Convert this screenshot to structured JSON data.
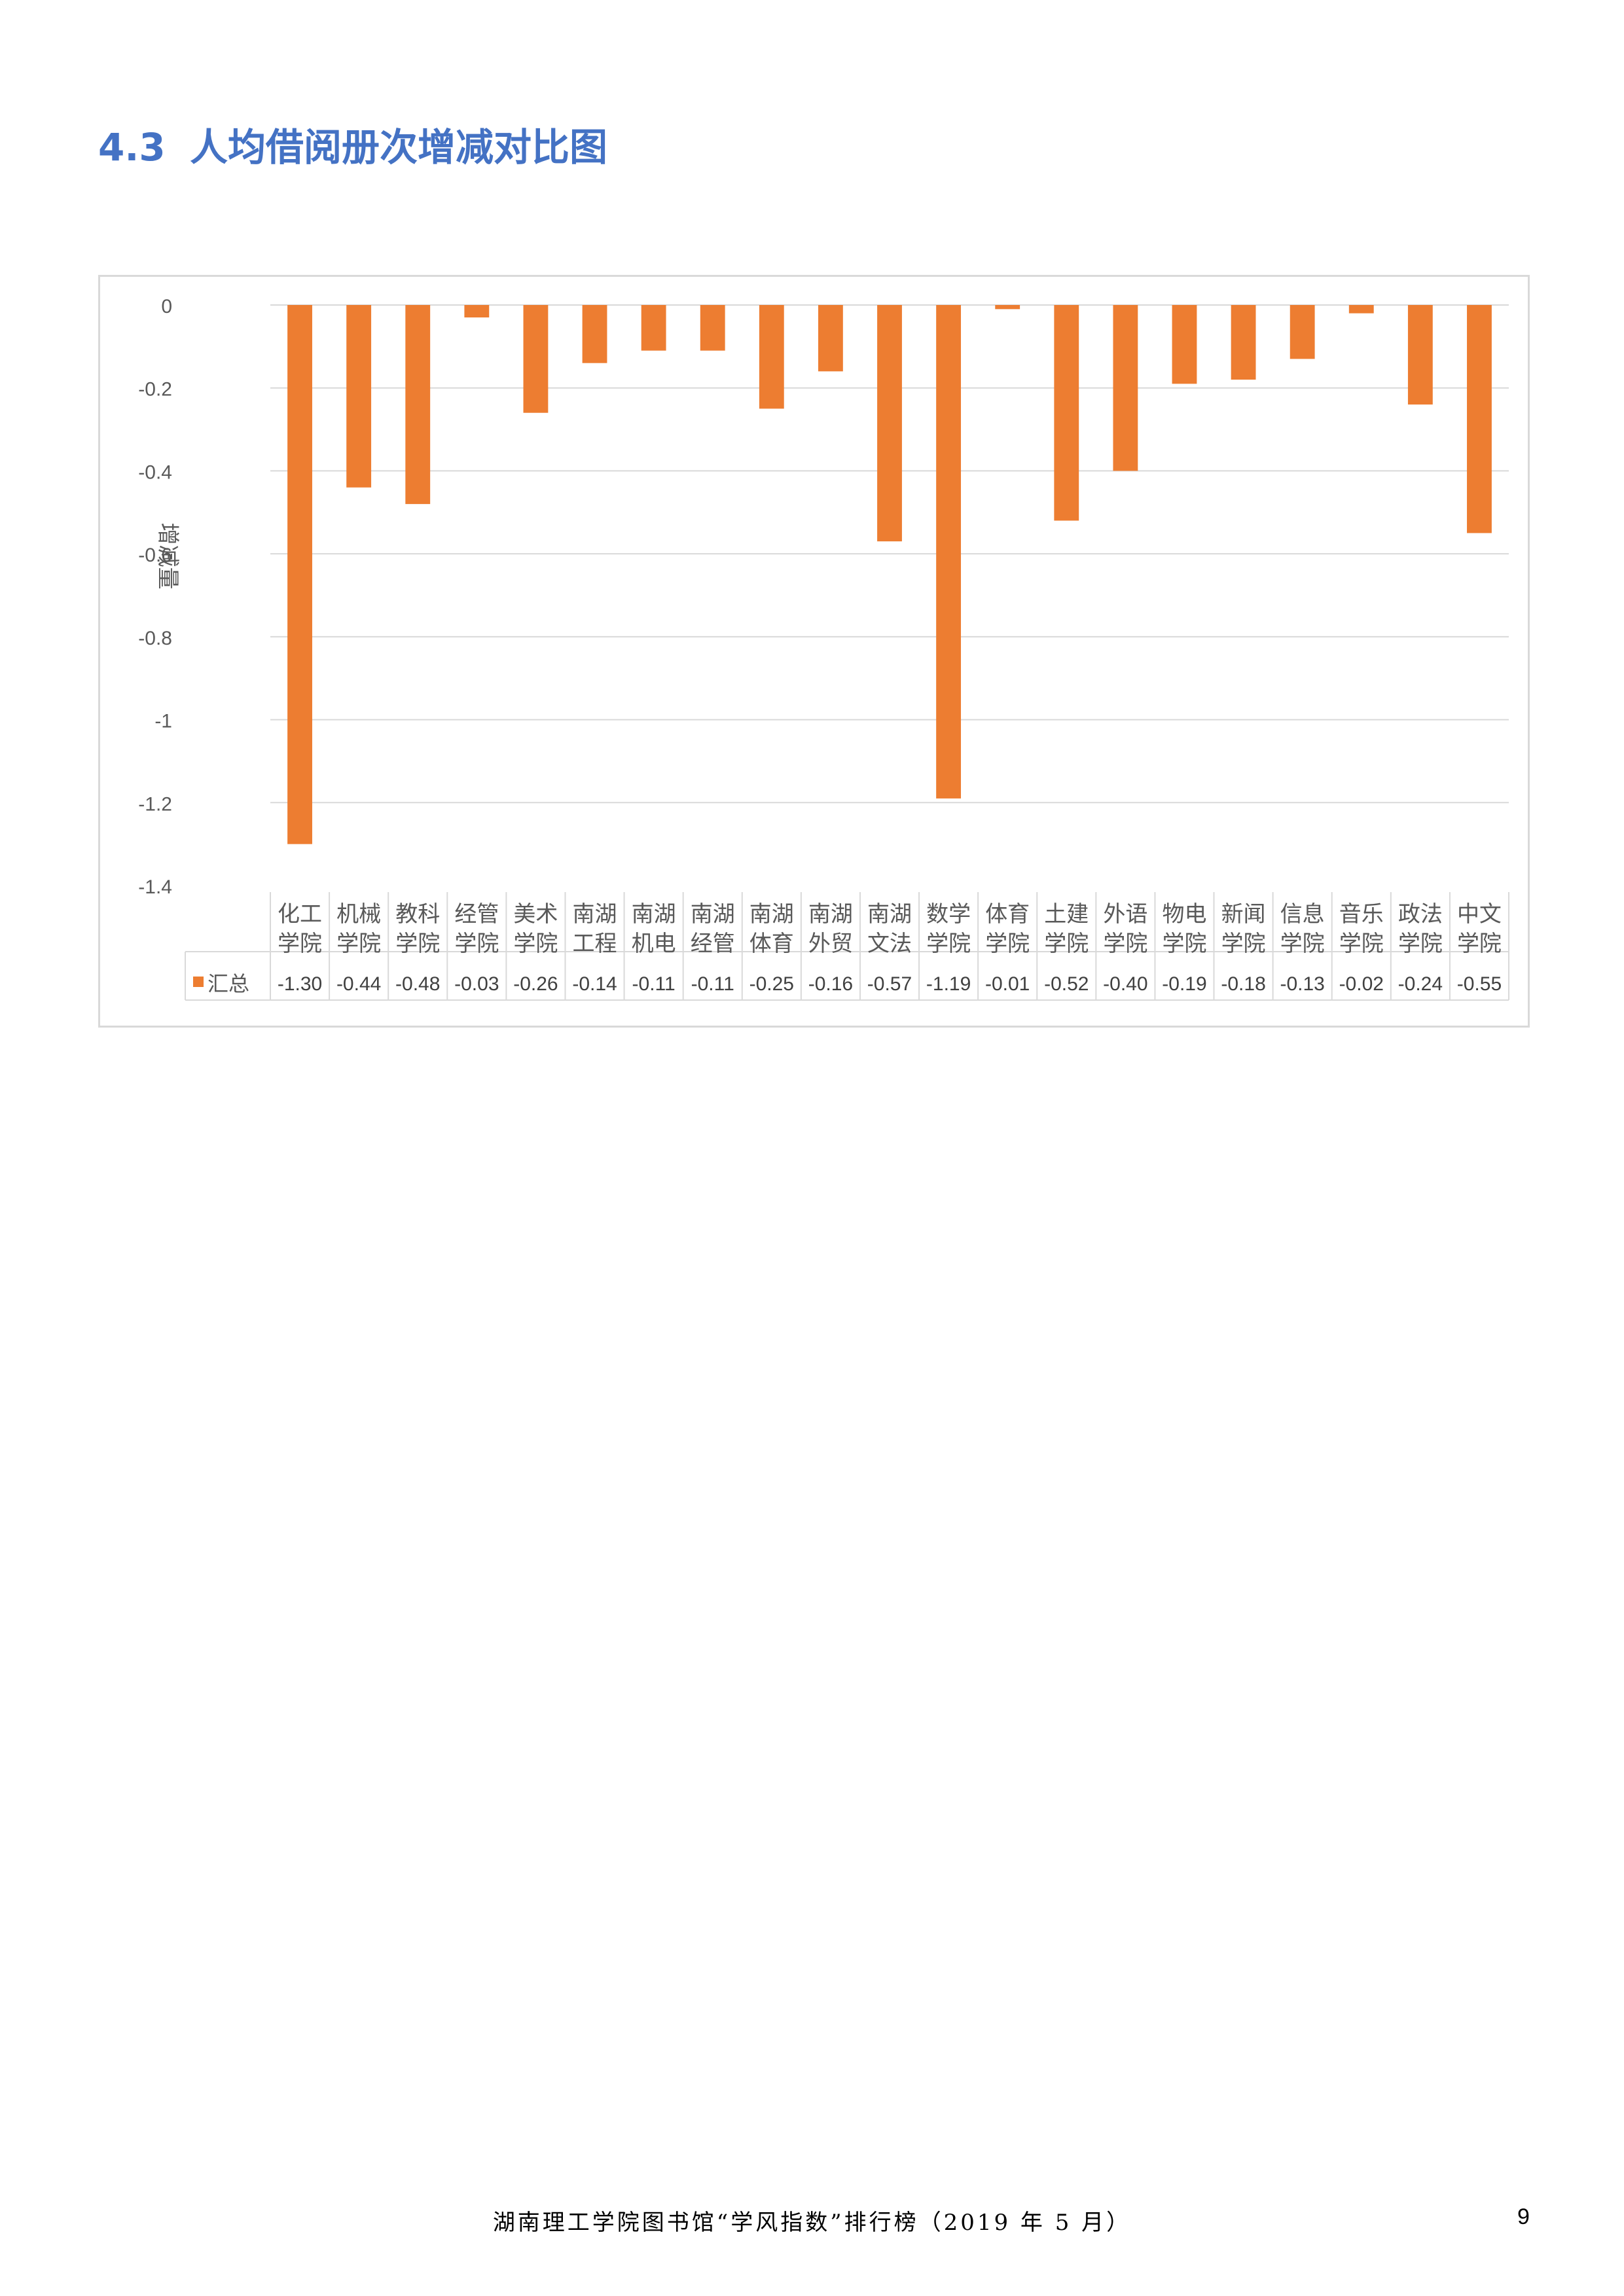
{
  "heading": {
    "number": "4.3",
    "title": "人均借阅册次增减对比图"
  },
  "footer": {
    "text": "湖南理工学院图书馆“学风指数”排行榜（2019 年 5 月）",
    "page": "9"
  },
  "chart_data": {
    "type": "bar",
    "ylabel": "增减量",
    "ylim": [
      -1.4,
      0
    ],
    "yticks": [
      0,
      -0.2,
      -0.4,
      -0.6,
      -0.8,
      -1,
      -1.2,
      -1.4
    ],
    "grid": true,
    "bar_color": "#ED7D31",
    "grid_color": "#d9d9d9",
    "categories": [
      [
        "化工",
        "学院"
      ],
      [
        "机械",
        "学院"
      ],
      [
        "教科",
        "学院"
      ],
      [
        "经管",
        "学院"
      ],
      [
        "美术",
        "学院"
      ],
      [
        "南湖",
        "工程"
      ],
      [
        "南湖",
        "机电"
      ],
      [
        "南湖",
        "经管"
      ],
      [
        "南湖",
        "体育"
      ],
      [
        "南湖",
        "外贸"
      ],
      [
        "南湖",
        "文法"
      ],
      [
        "数学",
        "学院"
      ],
      [
        "体育",
        "学院"
      ],
      [
        "土建",
        "学院"
      ],
      [
        "外语",
        "学院"
      ],
      [
        "物电",
        "学院"
      ],
      [
        "新闻",
        "学院"
      ],
      [
        "信息",
        "学院"
      ],
      [
        "音乐",
        "学院"
      ],
      [
        "政法",
        "学院"
      ],
      [
        "中文",
        "学院"
      ]
    ],
    "series": [
      {
        "name": "汇总",
        "values": [
          -1.3,
          -0.44,
          -0.48,
          -0.03,
          -0.26,
          -0.14,
          -0.11,
          -0.11,
          -0.25,
          -0.16,
          -0.57,
          -1.19,
          -0.01,
          -0.52,
          -0.4,
          -0.19,
          -0.18,
          -0.13,
          -0.02,
          -0.24,
          -0.55
        ],
        "labels": [
          "-1.30",
          "-0.44",
          "-0.48",
          "-0.03",
          "-0.26",
          "-0.14",
          "-0.11",
          "-0.11",
          "-0.25",
          "-0.16",
          "-0.57",
          "-1.19",
          "-0.01",
          "-0.52",
          "-0.40",
          "-0.19",
          "-0.18",
          "-0.13",
          "-0.02",
          "-0.24",
          "-0.55"
        ]
      }
    ]
  }
}
